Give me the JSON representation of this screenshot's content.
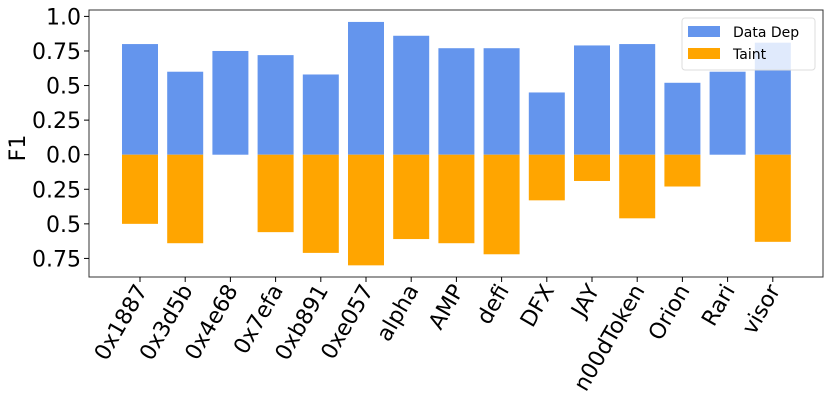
{
  "chart_data": {
    "type": "bar",
    "ylabel": "F1",
    "ylim": [
      -0.885,
      1.05
    ],
    "ytick_values": [
      1.0,
      0.75,
      0.5,
      0.25,
      0.0,
      -0.25,
      -0.5,
      -0.75
    ],
    "ytick_labels": [
      "1.0",
      "0.75",
      "0.5",
      "0.25",
      "0.0",
      "0.25",
      "0.5",
      "0.75"
    ],
    "categories": [
      "0x1887",
      "0x3d5b",
      "0x4e68",
      "0x7efa",
      "0xb891",
      "0xe057",
      "alpha",
      "AMP",
      "defi",
      "DFX",
      "JAY",
      "n00dToken",
      "Orion",
      "Rari",
      "visor"
    ],
    "series": [
      {
        "name": "Data Dep",
        "color": "#6495ED",
        "direction": "up",
        "values": [
          0.8,
          0.6,
          0.75,
          0.72,
          0.58,
          0.96,
          0.86,
          0.77,
          0.77,
          0.45,
          0.79,
          0.8,
          0.52,
          0.6,
          0.81
        ]
      },
      {
        "name": "Taint",
        "color": "#FFA500",
        "direction": "down",
        "values": [
          0.5,
          0.64,
          0.0,
          0.56,
          0.71,
          0.8,
          0.61,
          0.64,
          0.72,
          0.33,
          0.19,
          0.46,
          0.23,
          0.0,
          0.63
        ]
      }
    ],
    "legend": "top-right",
    "grid": false
  }
}
